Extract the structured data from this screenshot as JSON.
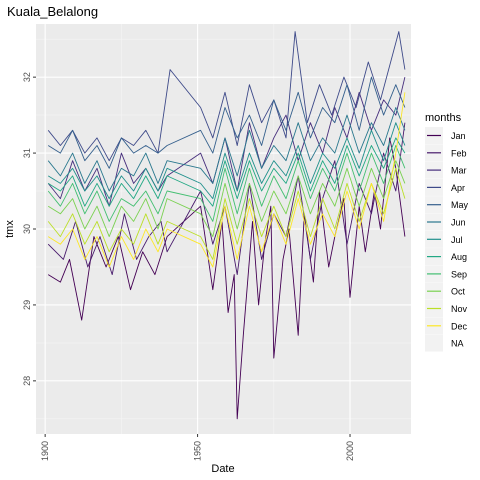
{
  "chart_data": {
    "type": "line",
    "title": "Kuala_Belalong",
    "xlabel": "Date",
    "ylabel": "tmx",
    "x_ticks": [
      1900,
      1950,
      2000
    ],
    "y_ticks": [
      28,
      29,
      30,
      31,
      32
    ],
    "xlim": [
      1897,
      2020
    ],
    "ylim": [
      27.3,
      32.7
    ],
    "grid": true,
    "legend": {
      "title": "months",
      "position": "right"
    },
    "gaps": [
      [
        1940,
        1950
      ]
    ],
    "series": [
      {
        "name": "Jan",
        "color": "#440154",
        "x": [
          1901,
          1905,
          1908,
          1912,
          1916,
          1920,
          1924,
          1928,
          1932,
          1936,
          1940,
          1951,
          1955,
          1958,
          1960,
          1962,
          1963,
          1965,
          1968,
          1970,
          1972,
          1974,
          1975,
          1978,
          1980,
          1983,
          1985,
          1988,
          1990,
          1993,
          1995,
          1998,
          2000,
          2003,
          2005,
          2008,
          2010,
          2013,
          2015,
          2018
        ],
        "y": [
          29.4,
          29.3,
          29.6,
          28.8,
          29.9,
          29.5,
          29.9,
          29.2,
          29.7,
          29.4,
          29.9,
          30.3,
          29.2,
          30.1,
          28.9,
          29.4,
          27.5,
          28.6,
          30.1,
          29.0,
          29.8,
          30.3,
          28.3,
          29.6,
          30.0,
          28.6,
          30.2,
          29.3,
          30.5,
          29.5,
          29.9,
          30.4,
          29.1,
          30.3,
          29.7,
          30.5,
          30.0,
          31.2,
          30.8,
          29.9
        ]
      },
      {
        "name": "Feb",
        "color": "#481A6C",
        "x": [
          1901,
          1906,
          1910,
          1914,
          1918,
          1922,
          1926,
          1930,
          1934,
          1938,
          1940,
          1951,
          1955,
          1959,
          1963,
          1967,
          1971,
          1975,
          1979,
          1983,
          1987,
          1991,
          1995,
          1999,
          2003,
          2007,
          2011,
          2015,
          2018
        ],
        "y": [
          29.8,
          29.6,
          30.1,
          29.5,
          29.9,
          29.4,
          30.2,
          29.6,
          29.9,
          30.1,
          29.7,
          30.5,
          29.8,
          30.3,
          29.4,
          30.6,
          29.6,
          30.2,
          29.9,
          30.7,
          29.6,
          30.4,
          30.9,
          29.8,
          30.6,
          30.2,
          31.0,
          30.5,
          31.4
        ]
      },
      {
        "name": "Mar",
        "color": "#472F7D",
        "x": [
          1901,
          1905,
          1909,
          1913,
          1917,
          1921,
          1925,
          1929,
          1933,
          1937,
          1940,
          1951,
          1955,
          1959,
          1963,
          1967,
          1971,
          1975,
          1979,
          1983,
          1987,
          1991,
          1995,
          1999,
          2003,
          2007,
          2011,
          2015,
          2018
        ],
        "y": [
          30.6,
          30.4,
          30.9,
          30.5,
          30.8,
          30.3,
          31.0,
          30.6,
          30.8,
          30.5,
          30.7,
          31.0,
          30.6,
          31.2,
          30.5,
          31.4,
          30.8,
          31.2,
          31.5,
          30.9,
          31.4,
          31.0,
          31.6,
          31.2,
          31.8,
          31.3,
          31.7,
          31.5,
          32.0
        ]
      },
      {
        "name": "Apr",
        "color": "#3E4A89",
        "x": [
          1901,
          1905,
          1909,
          1913,
          1917,
          1921,
          1925,
          1929,
          1933,
          1937,
          1941,
          1951,
          1955,
          1959,
          1963,
          1967,
          1971,
          1975,
          1979,
          1982,
          1986,
          1990,
          1994,
          1998,
          2002,
          2006,
          2010,
          2014,
          2016,
          2018
        ],
        "y": [
          31.3,
          31.1,
          31.3,
          31.0,
          31.2,
          30.9,
          31.2,
          31.1,
          31.3,
          31.0,
          32.1,
          31.6,
          31.2,
          31.8,
          31.1,
          31.9,
          31.4,
          31.7,
          31.2,
          32.6,
          31.4,
          31.9,
          31.5,
          32.0,
          31.6,
          32.2,
          31.7,
          32.3,
          32.6,
          32.1
        ]
      },
      {
        "name": "May",
        "color": "#35608D",
        "x": [
          1901,
          1905,
          1909,
          1913,
          1917,
          1921,
          1925,
          1929,
          1933,
          1937,
          1940,
          1951,
          1955,
          1959,
          1963,
          1967,
          1971,
          1975,
          1979,
          1983,
          1987,
          1991,
          1995,
          1999,
          2003,
          2007,
          2011,
          2015,
          2018
        ],
        "y": [
          31.1,
          31.0,
          31.3,
          30.9,
          31.1,
          30.8,
          31.2,
          31.0,
          31.1,
          31.0,
          31.1,
          31.3,
          31.0,
          31.6,
          31.2,
          31.5,
          31.1,
          31.7,
          31.3,
          31.8,
          31.2,
          31.6,
          31.4,
          31.9,
          31.3,
          32.0,
          31.5,
          31.9,
          31.6
        ]
      },
      {
        "name": "Jun",
        "color": "#2A788E",
        "x": [
          1901,
          1905,
          1909,
          1913,
          1917,
          1921,
          1925,
          1929,
          1933,
          1937,
          1940,
          1951,
          1955,
          1959,
          1963,
          1967,
          1971,
          1975,
          1979,
          1983,
          1987,
          1991,
          1995,
          1999,
          2003,
          2007,
          2011,
          2015,
          2018
        ],
        "y": [
          30.9,
          30.7,
          31.0,
          30.6,
          30.9,
          30.5,
          30.8,
          30.7,
          31.0,
          30.6,
          30.9,
          30.8,
          30.6,
          31.2,
          30.7,
          31.3,
          30.8,
          31.1,
          30.9,
          31.4,
          30.9,
          31.2,
          31.0,
          31.5,
          31.0,
          31.4,
          31.1,
          31.6,
          31.3
        ]
      },
      {
        "name": "Jul",
        "color": "#21908C",
        "x": [
          1901,
          1905,
          1909,
          1913,
          1917,
          1921,
          1925,
          1929,
          1933,
          1937,
          1940,
          1951,
          1955,
          1959,
          1963,
          1967,
          1971,
          1975,
          1979,
          1983,
          1987,
          1991,
          1995,
          1999,
          2003,
          2007,
          2011,
          2015,
          2018
        ],
        "y": [
          30.7,
          30.6,
          30.8,
          30.5,
          30.7,
          30.4,
          30.7,
          30.5,
          30.8,
          30.5,
          30.8,
          30.6,
          30.4,
          31.0,
          30.5,
          31.0,
          30.6,
          30.9,
          30.7,
          31.1,
          30.6,
          31.0,
          30.8,
          31.2,
          30.8,
          31.3,
          30.9,
          31.4,
          31.1
        ]
      },
      {
        "name": "Aug",
        "color": "#22A884",
        "x": [
          1901,
          1905,
          1909,
          1913,
          1917,
          1921,
          1925,
          1929,
          1933,
          1937,
          1940,
          1951,
          1955,
          1959,
          1963,
          1967,
          1971,
          1975,
          1979,
          1983,
          1987,
          1991,
          1995,
          1999,
          2003,
          2007,
          2011,
          2015,
          2018
        ],
        "y": [
          30.6,
          30.5,
          30.7,
          30.3,
          30.6,
          30.3,
          30.6,
          30.4,
          30.7,
          30.4,
          30.7,
          30.5,
          30.3,
          30.9,
          30.4,
          30.9,
          30.5,
          30.8,
          30.6,
          31.0,
          30.5,
          30.9,
          30.6,
          31.1,
          30.7,
          31.1,
          30.8,
          31.2,
          31.0
        ]
      },
      {
        "name": "Sep",
        "color": "#43BF71",
        "x": [
          1901,
          1905,
          1909,
          1913,
          1917,
          1921,
          1925,
          1929,
          1933,
          1937,
          1940,
          1951,
          1955,
          1959,
          1963,
          1967,
          1971,
          1975,
          1979,
          1983,
          1987,
          1991,
          1995,
          1999,
          2003,
          2007,
          2011,
          2015,
          2018
        ],
        "y": [
          30.5,
          30.3,
          30.6,
          30.2,
          30.5,
          30.1,
          30.4,
          30.3,
          30.5,
          30.2,
          30.5,
          30.4,
          30.1,
          30.8,
          30.2,
          30.8,
          30.3,
          30.7,
          30.4,
          30.9,
          30.4,
          30.8,
          30.5,
          31.0,
          30.5,
          31.0,
          30.6,
          31.1,
          30.8
        ]
      },
      {
        "name": "Oct",
        "color": "#7AD151",
        "x": [
          1901,
          1905,
          1909,
          1913,
          1917,
          1921,
          1925,
          1929,
          1933,
          1937,
          1940,
          1951,
          1955,
          1959,
          1963,
          1967,
          1971,
          1975,
          1979,
          1983,
          1987,
          1991,
          1995,
          1999,
          2003,
          2007,
          2011,
          2015,
          2018
        ],
        "y": [
          30.3,
          30.2,
          30.4,
          30.0,
          30.3,
          29.9,
          30.3,
          30.1,
          30.4,
          30.0,
          30.4,
          30.2,
          29.9,
          30.6,
          30.0,
          30.6,
          30.1,
          30.5,
          30.2,
          30.7,
          30.2,
          30.6,
          30.3,
          30.8,
          30.3,
          30.8,
          30.4,
          30.9,
          30.6
        ]
      },
      {
        "name": "Nov",
        "color": "#BBDF27",
        "x": [
          1901,
          1905,
          1909,
          1913,
          1917,
          1921,
          1925,
          1929,
          1933,
          1937,
          1940,
          1951,
          1955,
          1959,
          1963,
          1967,
          1971,
          1975,
          1979,
          1983,
          1987,
          1991,
          1995,
          1999,
          2003,
          2007,
          2011,
          2015,
          2018
        ],
        "y": [
          30.1,
          29.9,
          30.2,
          29.8,
          30.1,
          29.7,
          30.0,
          29.8,
          30.2,
          29.8,
          30.1,
          29.9,
          29.6,
          30.4,
          29.8,
          30.4,
          29.9,
          30.3,
          29.9,
          30.5,
          29.9,
          30.4,
          30.0,
          30.6,
          30.1,
          30.6,
          30.2,
          30.8,
          30.4
        ]
      },
      {
        "name": "Dec",
        "color": "#FDE725",
        "x": [
          1901,
          1905,
          1909,
          1913,
          1917,
          1921,
          1925,
          1929,
          1933,
          1937,
          1940,
          1951,
          1955,
          1959,
          1963,
          1967,
          1971,
          1975,
          1979,
          1983,
          1987,
          1991,
          1995,
          1999,
          2003,
          2007,
          2011,
          2015,
          2018
        ],
        "y": [
          29.9,
          29.8,
          30.0,
          29.6,
          29.9,
          29.5,
          29.9,
          29.6,
          30.0,
          29.7,
          30.0,
          29.8,
          29.5,
          30.3,
          29.6,
          30.3,
          29.7,
          30.2,
          29.8,
          30.4,
          29.8,
          30.2,
          29.9,
          30.5,
          30.0,
          30.6,
          30.1,
          31.0,
          31.8
        ]
      }
    ],
    "legend_items": [
      {
        "label": "Jan",
        "color": "#440154"
      },
      {
        "label": "Feb",
        "color": "#481A6C"
      },
      {
        "label": "Mar",
        "color": "#472F7D"
      },
      {
        "label": "Apr",
        "color": "#3E4A89"
      },
      {
        "label": "May",
        "color": "#35608D"
      },
      {
        "label": "Jun",
        "color": "#2A788E"
      },
      {
        "label": "Jul",
        "color": "#21908C"
      },
      {
        "label": "Aug",
        "color": "#22A884"
      },
      {
        "label": "Sep",
        "color": "#43BF71"
      },
      {
        "label": "Oct",
        "color": "#7AD151"
      },
      {
        "label": "Nov",
        "color": "#BBDF27"
      },
      {
        "label": "Dec",
        "color": "#FDE725"
      },
      {
        "label": "NA",
        "color": "#7F7F7F"
      }
    ]
  }
}
